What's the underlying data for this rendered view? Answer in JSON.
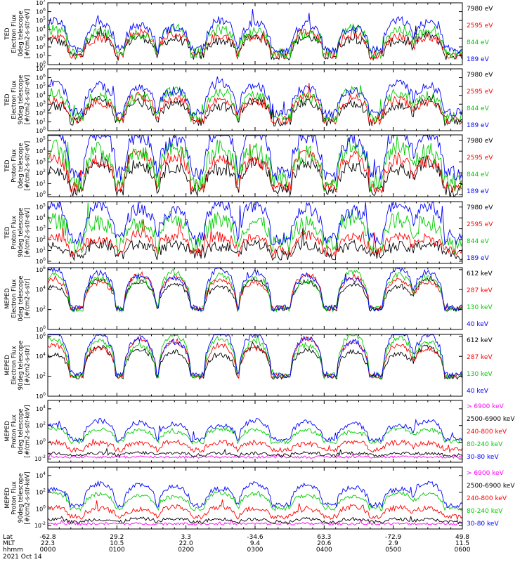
{
  "chart_data": {
    "type": "line",
    "x_axis": {
      "tick_rows": [
        {
          "label": "Lat",
          "values": [
            "-62.8",
            "29.2",
            "3.3",
            "-34.6",
            "63.3",
            "-72.9",
            "49.8"
          ]
        },
        {
          "label": "MLT",
          "values": [
            "22.3",
            "10.5",
            "22.0",
            "9.4",
            "20.6",
            "2.9",
            "11.5"
          ]
        },
        {
          "label": "hhmm",
          "values": [
            "0000",
            "0100",
            "0200",
            "0300",
            "0400",
            "0500",
            "0600"
          ]
        }
      ],
      "date_label": "2021 Oct 14",
      "time_range_hhmm": [
        "0000",
        "0600"
      ]
    },
    "panels": [
      {
        "ylabel_lines": [
          "TED",
          "Electron Flux",
          "0deg telescope",
          "[#/cm2-s-str-eV]"
        ],
        "y_ticks": [
          {
            "e": 0,
            "label": "10"
          },
          {
            "e": 1,
            "label": "10"
          },
          {
            "e": 2,
            "label": "10"
          },
          {
            "e": 3,
            "label": "10"
          },
          {
            "e": 4,
            "label": "10"
          },
          {
            "e": 5,
            "label": "10"
          },
          {
            "e": 6,
            "label": "10"
          },
          {
            "e": 7,
            "label": "10"
          }
        ],
        "log_range": [
          0,
          7
        ],
        "series": [
          {
            "name": "7980 eV",
            "color": "#000000",
            "base": 0.9,
            "arch": 2.3,
            "noise": 0.5
          },
          {
            "name": "2595 eV",
            "color": "#ff0000",
            "base": 1.0,
            "arch": 2.6,
            "noise": 0.5
          },
          {
            "name": "844 eV",
            "color": "#00cc00",
            "base": 1.2,
            "arch": 2.9,
            "noise": 0.6
          },
          {
            "name": "189 eV",
            "color": "#0000ff",
            "base": 1.6,
            "arch": 3.3,
            "noise": 0.5
          }
        ]
      },
      {
        "ylabel_lines": [
          "TED",
          "Electron Flux",
          "90deg telescope",
          "[#/cm2-s-str-eV]"
        ],
        "y_ticks": [
          {
            "e": 0,
            "label": "10"
          },
          {
            "e": 1,
            "label": "10"
          },
          {
            "e": 2,
            "label": "10"
          },
          {
            "e": 3,
            "label": "10"
          },
          {
            "e": 4,
            "label": "10"
          },
          {
            "e": 5,
            "label": "10"
          },
          {
            "e": 6,
            "label": "10"
          },
          {
            "e": 7,
            "label": "10"
          }
        ],
        "log_range": [
          0,
          7
        ],
        "series": [
          {
            "name": "7980 eV",
            "color": "#000000",
            "base": 0.9,
            "arch": 2.4,
            "noise": 0.5
          },
          {
            "name": "2595 eV",
            "color": "#ff0000",
            "base": 1.1,
            "arch": 2.7,
            "noise": 0.5
          },
          {
            "name": "844 eV",
            "color": "#00cc00",
            "base": 1.4,
            "arch": 3.0,
            "noise": 0.6
          },
          {
            "name": "189 eV",
            "color": "#0000ff",
            "base": 1.9,
            "arch": 3.4,
            "noise": 0.5
          }
        ]
      },
      {
        "ylabel_lines": [
          "TED",
          "Proton Flux",
          "0deg telescope",
          "[#/cm2-s-str-eV]"
        ],
        "y_ticks": [
          {
            "e": 0,
            "label": "10"
          },
          {
            "e": 1,
            "label": "10"
          },
          {
            "e": 2,
            "label": "10"
          },
          {
            "e": 3,
            "label": "10"
          },
          {
            "e": 4,
            "label": "10"
          },
          {
            "e": 5,
            "label": "10"
          }
        ],
        "log_range": [
          -0.2,
          5.5
        ],
        "series": [
          {
            "name": "7980 eV",
            "color": "#000000",
            "base": 0.3,
            "arch": 2.6,
            "noise": 0.6
          },
          {
            "name": "2595 eV",
            "color": "#ff0000",
            "base": 0.6,
            "arch": 3.1,
            "noise": 0.6
          },
          {
            "name": "844 eV",
            "color": "#00cc00",
            "base": 1.0,
            "arch": 3.4,
            "noise": 0.9
          },
          {
            "name": "189 eV",
            "color": "#0000ff",
            "base": 1.8,
            "arch": 4.1,
            "noise": 0.7
          }
        ]
      },
      {
        "ylabel_lines": [
          "TED",
          "Proton Flux",
          "90deg telescope",
          "[#/cm2-s-str-eV]"
        ],
        "y_ticks": [
          {
            "e": 0,
            "label": "10"
          },
          {
            "e": 1,
            "label": "10"
          },
          {
            "e": 2,
            "label": "10"
          },
          {
            "e": 3,
            "label": "10"
          },
          {
            "e": 4,
            "label": "10"
          },
          {
            "e": 5,
            "label": "10"
          }
        ],
        "log_range": [
          -0.2,
          5.5
        ],
        "series": [
          {
            "name": "7980 eV",
            "color": "#000000",
            "base": 0.5,
            "arch": 1.0,
            "noise": 0.5
          },
          {
            "name": "2595 eV",
            "color": "#ff0000",
            "base": 0.8,
            "arch": 1.6,
            "noise": 0.5
          },
          {
            "name": "844 eV",
            "color": "#00cc00",
            "base": 1.4,
            "arch": 2.5,
            "noise": 0.8
          },
          {
            "name": "189 eV",
            "color": "#0000ff",
            "base": 2.0,
            "arch": 3.3,
            "noise": 0.6
          }
        ]
      },
      {
        "ylabel_lines": [
          "MEPED",
          "Electron Flux",
          "0deg telescope",
          "[#/cm2-s-str]"
        ],
        "y_ticks": [
          {
            "e": 0,
            "label": "10"
          },
          {
            "e": 2,
            "label": "10"
          },
          {
            "e": 4,
            "label": "10"
          },
          {
            "e": 6,
            "label": "10"
          }
        ],
        "log_range": [
          0,
          6.2
        ],
        "series": [
          {
            "name": "612 keV",
            "color": "#000000",
            "base": 2.0,
            "arch": 3.0,
            "noise": 0.2
          },
          {
            "name": "287 keV",
            "color": "#ff0000",
            "base": 2.1,
            "arch": 3.4,
            "noise": 0.25
          },
          {
            "name": "130 keV",
            "color": "#00cc00",
            "base": 2.0,
            "arch": 3.7,
            "noise": 0.3
          },
          {
            "name": "40 keV",
            "color": "#0000ff",
            "base": 2.1,
            "arch": 3.9,
            "noise": 0.3
          }
        ]
      },
      {
        "ylabel_lines": [
          "MEPED",
          "Electron Flux",
          "90deg telescope",
          "[#/cm2-s-str]"
        ],
        "y_ticks": [
          {
            "e": 0,
            "label": "10"
          },
          {
            "e": 2,
            "label": "10"
          },
          {
            "e": 4,
            "label": "10"
          },
          {
            "e": 6,
            "label": "10"
          }
        ],
        "log_range": [
          0,
          6.2
        ],
        "series": [
          {
            "name": "612 keV",
            "color": "#000000",
            "base": 1.9,
            "arch": 3.0,
            "noise": 0.25
          },
          {
            "name": "287 keV",
            "color": "#ff0000",
            "base": 2.0,
            "arch": 3.7,
            "noise": 0.25
          },
          {
            "name": "130 keV",
            "color": "#00cc00",
            "base": 2.0,
            "arch": 4.1,
            "noise": 0.3
          },
          {
            "name": "40 keV",
            "color": "#0000ff",
            "base": 2.1,
            "arch": 4.4,
            "noise": 0.3
          }
        ]
      },
      {
        "ylabel_lines": [
          "MEPED",
          "Proton Flux",
          "0deg telescope",
          "[#/cm2-s-str-keV]"
        ],
        "y_ticks": [
          {
            "e": -2,
            "label": "10"
          },
          {
            "e": 0,
            "label": "10"
          },
          {
            "e": 2,
            "label": "10"
          },
          {
            "e": 4,
            "label": "10"
          }
        ],
        "log_range": [
          -2.4,
          5.0
        ],
        "series": [
          {
            "name": "> 6900 keV",
            "color": "#ff00ff",
            "base": -1.8,
            "arch": 0.0,
            "noise": 0.15
          },
          {
            "name": "2500-6900 keV",
            "color": "#000000",
            "base": -1.6,
            "arch": 0.3,
            "noise": 0.2
          },
          {
            "name": "240-800 keV",
            "color": "#ff0000",
            "base": -1.0,
            "arch": 1.0,
            "noise": 0.3
          },
          {
            "name": "80-240 keV",
            "color": "#00cc00",
            "base": 0.0,
            "arch": 1.6,
            "noise": 0.25
          },
          {
            "name": "30-80 keV",
            "color": "#0000ff",
            "base": 0.3,
            "arch": 2.2,
            "noise": 0.3
          }
        ]
      },
      {
        "ylabel_lines": [
          "MEPED",
          "Proton Flux",
          "90deg telescope",
          "[#/cm2-s-str-keV]"
        ],
        "y_ticks": [
          {
            "e": -2,
            "label": "10"
          },
          {
            "e": 0,
            "label": "10"
          },
          {
            "e": 2,
            "label": "10"
          },
          {
            "e": 4,
            "label": "10"
          }
        ],
        "log_range": [
          -2.4,
          5.0
        ],
        "series": [
          {
            "name": "> 6900 keV",
            "color": "#ff00ff",
            "base": -1.8,
            "arch": 0.0,
            "noise": 0.15
          },
          {
            "name": "2500-6900 keV",
            "color": "#000000",
            "base": -1.6,
            "arch": 0.4,
            "noise": 0.2
          },
          {
            "name": "240-800 keV",
            "color": "#ff0000",
            "base": -1.0,
            "arch": 1.2,
            "noise": 0.3
          },
          {
            "name": "80-240 keV",
            "color": "#00cc00",
            "base": 0.0,
            "arch": 1.9,
            "noise": 0.25
          },
          {
            "name": "30-80 keV",
            "color": "#0000ff",
            "base": 0.4,
            "arch": 2.6,
            "noise": 0.3
          }
        ]
      }
    ],
    "passes_hhmm": [
      "0005",
      "0045",
      "0120",
      "0150",
      "0230",
      "0300",
      "0345",
      "0425",
      "0505",
      "0530"
    ]
  }
}
